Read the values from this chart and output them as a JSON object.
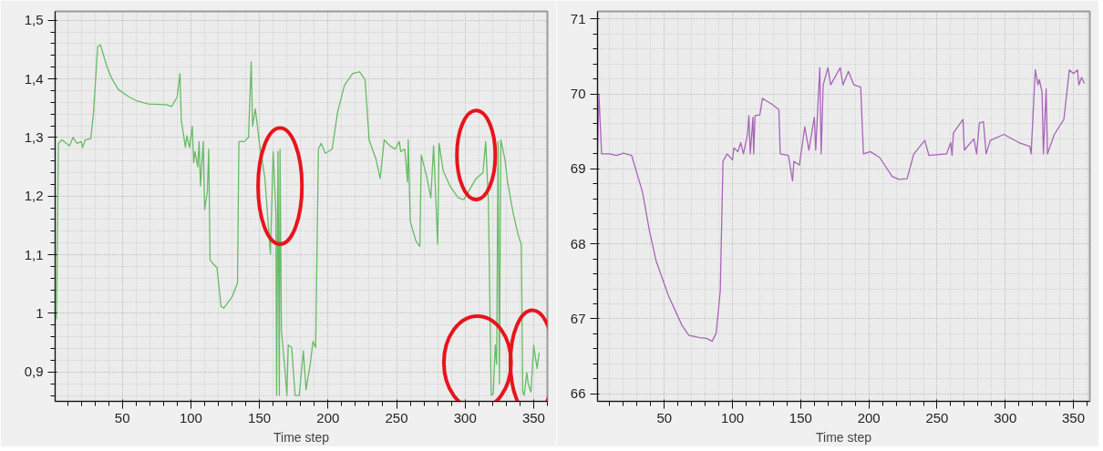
{
  "chart_data": [
    {
      "type": "line",
      "xlabel": "Time step",
      "grid": true,
      "xlim": [
        1,
        360
      ],
      "ylim": [
        0.85,
        1.515
      ],
      "xticks": [
        50,
        100,
        150,
        200,
        250,
        300,
        350
      ],
      "yticks": [
        {
          "value": 0.9,
          "label": "0,9"
        },
        1,
        {
          "value": 1.1,
          "label": "1,1"
        },
        {
          "value": 1.2,
          "label": "1,2"
        },
        {
          "value": 1.3,
          "label": "1,3"
        },
        {
          "value": 1.4,
          "label": "1,4"
        },
        {
          "value": 1.5,
          "label": "1,5"
        }
      ],
      "series": [
        {
          "color": "#66bb66",
          "x": [
            2,
            3.4,
            6,
            9,
            11.5,
            14,
            17,
            20,
            21,
            23,
            27,
            29,
            32,
            34,
            39,
            42,
            47,
            55,
            61,
            69,
            82,
            86,
            90,
            92,
            93,
            96,
            97,
            99,
            101,
            102,
            103,
            105,
            106,
            107,
            109,
            110,
            112,
            113,
            114,
            116,
            119,
            122,
            124,
            130,
            134,
            135,
            139,
            142,
            144,
            145,
            147,
            150,
            154,
            158,
            160,
            162,
            162.5,
            163.5,
            164.5,
            165,
            166,
            167,
            168.5,
            170,
            171,
            173.5,
            176,
            179,
            182,
            184,
            187,
            189,
            191,
            193,
            195,
            198,
            203,
            207,
            212,
            218,
            223,
            227,
            230,
            235,
            238,
            241,
            245,
            249,
            252,
            253,
            256,
            258,
            258.5,
            260,
            264,
            267,
            268,
            272,
            275,
            277,
            280,
            281,
            284,
            289,
            295,
            299,
            303,
            308,
            313,
            315,
            317,
            319,
            320.5,
            322,
            323,
            324,
            325,
            326,
            329,
            331,
            335,
            339,
            341,
            342,
            343,
            345,
            346,
            348,
            350,
            351,
            352.5,
            354
          ],
          "values": [
            0.99,
            1.29,
            1.296,
            1.29,
            1.286,
            1.3,
            1.29,
            1.293,
            1.283,
            1.296,
            1.298,
            1.343,
            1.455,
            1.458,
            1.419,
            1.402,
            1.382,
            1.369,
            1.362,
            1.357,
            1.356,
            1.353,
            1.369,
            1.409,
            1.329,
            1.283,
            1.303,
            1.283,
            1.319,
            1.257,
            1.276,
            1.25,
            1.293,
            1.217,
            1.293,
            1.177,
            1.207,
            1.28,
            1.091,
            1.085,
            1.078,
            1.012,
            1.009,
            1.028,
            1.052,
            1.293,
            1.293,
            1.3,
            1.429,
            1.319,
            1.349,
            1.29,
            1.23,
            1.101,
            1.276,
            1.171,
            0.86,
            1.276,
            0.86,
            1.28,
            0.972,
            0.946,
            0.906,
            0.86,
            0.946,
            0.942,
            0.86,
            0.86,
            0.936,
            0.87,
            0.913,
            0.952,
            0.942,
            1.28,
            1.29,
            1.273,
            1.28,
            1.343,
            1.389,
            1.409,
            1.412,
            1.399,
            1.296,
            1.263,
            1.23,
            1.296,
            1.286,
            1.28,
            1.293,
            1.276,
            1.28,
            1.224,
            1.296,
            1.157,
            1.124,
            1.114,
            1.27,
            1.233,
            1.197,
            1.286,
            1.118,
            1.29,
            1.243,
            1.217,
            1.197,
            1.194,
            1.21,
            1.23,
            1.24,
            1.293,
            1.19,
            0.86,
            0.863,
            0.946,
            0.913,
            1.293,
            0.88,
            1.296,
            1.263,
            1.224,
            1.171,
            1.131,
            1.118,
            0.866,
            0.86,
            0.899,
            0.88,
            0.866,
            0.946,
            0.929,
            0.906,
            0.933
          ]
        }
      ]
    },
    {
      "type": "line",
      "xlabel": "Time step",
      "grid": true,
      "xlim": [
        1,
        362
      ],
      "ylim": [
        65.9,
        71.1
      ],
      "xticks": [
        50,
        100,
        150,
        200,
        250,
        300,
        350
      ],
      "yticks": [
        66,
        67,
        68,
        69,
        70,
        71
      ],
      "series": [
        {
          "color": "#a865b8",
          "x": [
            1,
            2,
            4,
            10,
            15,
            20,
            26,
            34,
            39,
            44,
            53,
            63,
            68,
            76,
            81,
            85,
            88,
            91,
            93,
            96,
            100,
            101,
            104,
            106,
            108,
            111,
            112,
            113,
            115,
            115.5,
            116.5,
            120,
            122,
            129,
            134,
            135,
            141,
            144,
            145,
            149,
            153,
            156,
            160,
            161,
            164,
            165,
            166.5,
            170,
            172,
            179,
            181,
            185,
            189,
            194,
            196,
            201,
            208,
            217,
            222,
            228,
            233,
            241,
            244,
            257,
            260,
            261,
            262,
            269,
            270,
            277,
            279,
            281,
            284,
            286,
            289,
            299,
            310,
            318,
            319,
            322,
            324,
            325,
            327,
            328,
            330,
            331,
            336,
            343,
            347,
            350,
            353,
            354,
            356,
            358
          ],
          "values": [
            69.2,
            69.99,
            69.2,
            69.2,
            69.18,
            69.21,
            69.18,
            68.69,
            68.18,
            67.77,
            67.31,
            66.91,
            66.78,
            66.75,
            66.74,
            66.7,
            66.81,
            67.37,
            69.1,
            69.2,
            69.12,
            69.28,
            69.23,
            69.35,
            69.2,
            69.46,
            69.71,
            69.2,
            69.69,
            69.2,
            69.71,
            69.72,
            69.94,
            69.86,
            69.79,
            69.2,
            69.18,
            68.84,
            69.1,
            69.05,
            69.56,
            69.25,
            69.69,
            69.25,
            70.35,
            69.2,
            70.12,
            70.35,
            70.12,
            70.35,
            70.12,
            70.3,
            70.12,
            70.09,
            69.2,
            69.23,
            69.15,
            68.9,
            68.86,
            68.87,
            69.2,
            69.38,
            69.18,
            69.2,
            69.35,
            69.18,
            69.48,
            69.66,
            69.25,
            69.4,
            69.2,
            69.61,
            69.63,
            69.2,
            69.38,
            69.46,
            69.35,
            69.3,
            69.2,
            70.32,
            70.12,
            70.19,
            70.02,
            69.2,
            70.07,
            69.2,
            69.46,
            69.66,
            70.32,
            70.27,
            70.32,
            70.12,
            70.22,
            70.14
          ]
        }
      ]
    }
  ]
}
